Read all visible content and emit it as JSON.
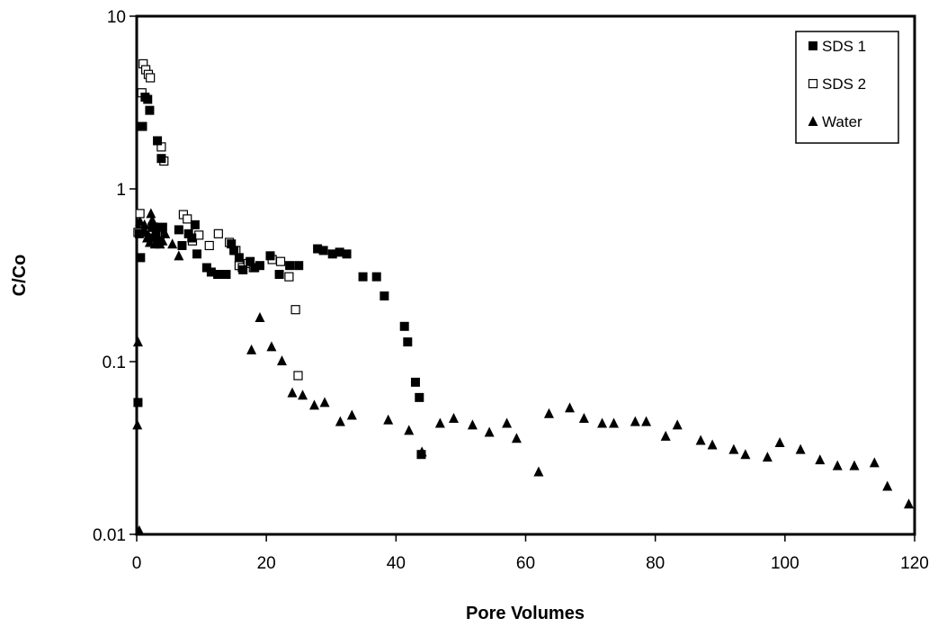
{
  "chart_data": {
    "type": "scatter",
    "xlabel": "Pore Volumes",
    "ylabel": "C/Co",
    "xlim": [
      0,
      120
    ],
    "ylim": [
      0.01,
      10
    ],
    "yscale": "log",
    "xticks": [
      "0",
      "20",
      "40",
      "60",
      "80",
      "100",
      "120"
    ],
    "yticks": [
      "0.01",
      "0.1",
      "1",
      "10"
    ],
    "grid": false,
    "legend_position": "top-right",
    "series": [
      {
        "name": "SDS 1",
        "marker": "filled-square",
        "color": "#000000",
        "points": [
          [
            0.2,
            0.058
          ],
          [
            0.4,
            0.55
          ],
          [
            0.6,
            0.4
          ],
          [
            0.9,
            2.3
          ],
          [
            1.3,
            3.4
          ],
          [
            1.7,
            3.3
          ],
          [
            2.0,
            2.85
          ],
          [
            2.4,
            0.6
          ],
          [
            2.7,
            0.52
          ],
          [
            3.0,
            0.55
          ],
          [
            3.2,
            1.9
          ],
          [
            3.6,
            0.5
          ],
          [
            3.8,
            1.5
          ],
          [
            4.0,
            0.6
          ],
          [
            6.5,
            0.58
          ],
          [
            7.0,
            0.47
          ],
          [
            8.0,
            0.55
          ],
          [
            8.5,
            0.52
          ],
          [
            9.0,
            0.62
          ],
          [
            9.3,
            0.42
          ],
          [
            10.8,
            0.35
          ],
          [
            11.5,
            0.33
          ],
          [
            12.5,
            0.32
          ],
          [
            13.8,
            0.32
          ],
          [
            14.6,
            0.48
          ],
          [
            15.0,
            0.44
          ],
          [
            15.8,
            0.4
          ],
          [
            16.4,
            0.34
          ],
          [
            17.5,
            0.38
          ],
          [
            18.2,
            0.35
          ],
          [
            19.0,
            0.36
          ],
          [
            20.6,
            0.41
          ],
          [
            22.0,
            0.32
          ],
          [
            23.6,
            0.36
          ],
          [
            25.0,
            0.36
          ],
          [
            27.9,
            0.45
          ],
          [
            28.8,
            0.44
          ],
          [
            30.2,
            0.42
          ],
          [
            31.3,
            0.43
          ],
          [
            32.4,
            0.42
          ],
          [
            34.9,
            0.31
          ],
          [
            37.0,
            0.31
          ],
          [
            38.2,
            0.24
          ],
          [
            41.3,
            0.16
          ],
          [
            41.8,
            0.13
          ],
          [
            43.0,
            0.076
          ],
          [
            43.6,
            0.062
          ],
          [
            43.9,
            0.029
          ]
        ]
      },
      {
        "name": "SDS 2",
        "marker": "open-square",
        "color": "#000000",
        "points": [
          [
            0.2,
            0.56
          ],
          [
            0.5,
            0.72
          ],
          [
            0.8,
            3.6
          ],
          [
            1.0,
            5.3
          ],
          [
            1.4,
            4.9
          ],
          [
            1.8,
            4.6
          ],
          [
            2.1,
            4.4
          ],
          [
            2.5,
            0.6
          ],
          [
            3.2,
            0.55
          ],
          [
            3.8,
            1.75
          ],
          [
            4.2,
            1.45
          ],
          [
            7.2,
            0.71
          ],
          [
            7.8,
            0.67
          ],
          [
            8.6,
            0.5
          ],
          [
            9.6,
            0.54
          ],
          [
            11.2,
            0.47
          ],
          [
            12.6,
            0.55
          ],
          [
            14.3,
            0.49
          ],
          [
            15.3,
            0.44
          ],
          [
            15.8,
            0.36
          ],
          [
            16.3,
            0.35
          ],
          [
            17.2,
            0.37
          ],
          [
            18.0,
            0.35
          ],
          [
            20.9,
            0.39
          ],
          [
            22.2,
            0.38
          ],
          [
            23.5,
            0.31
          ],
          [
            24.5,
            0.2
          ],
          [
            24.9,
            0.083
          ]
        ]
      },
      {
        "name": "Water",
        "marker": "filled-triangle",
        "color": "#000000",
        "points": [
          [
            0.1,
            0.043
          ],
          [
            0.2,
            0.13
          ],
          [
            0.3,
            0.6
          ],
          [
            0.4,
            0.0105
          ],
          [
            0.5,
            0.65
          ],
          [
            0.9,
            0.58
          ],
          [
            1.2,
            0.62
          ],
          [
            1.4,
            0.56
          ],
          [
            1.6,
            0.52
          ],
          [
            1.8,
            0.54
          ],
          [
            2.0,
            0.49
          ],
          [
            2.2,
            0.72
          ],
          [
            2.4,
            0.66
          ],
          [
            2.6,
            0.6
          ],
          [
            2.8,
            0.48
          ],
          [
            3.0,
            0.57
          ],
          [
            3.2,
            0.6
          ],
          [
            3.4,
            0.55
          ],
          [
            3.6,
            0.48
          ],
          [
            3.8,
            0.58
          ],
          [
            4.0,
            0.5
          ],
          [
            4.4,
            0.55
          ],
          [
            5.5,
            0.48
          ],
          [
            6.5,
            0.41
          ],
          [
            17.7,
            0.117
          ],
          [
            19.0,
            0.18
          ],
          [
            20.8,
            0.122
          ],
          [
            22.4,
            0.101
          ],
          [
            24.0,
            0.066
          ],
          [
            25.6,
            0.064
          ],
          [
            27.4,
            0.056
          ],
          [
            29.0,
            0.058
          ],
          [
            31.4,
            0.045
          ],
          [
            33.2,
            0.049
          ],
          [
            38.8,
            0.046
          ],
          [
            42.0,
            0.04
          ],
          [
            44.0,
            0.03
          ],
          [
            46.8,
            0.044
          ],
          [
            48.9,
            0.047
          ],
          [
            51.8,
            0.043
          ],
          [
            54.4,
            0.039
          ],
          [
            57.1,
            0.044
          ],
          [
            58.6,
            0.036
          ],
          [
            62.0,
            0.023
          ],
          [
            63.6,
            0.05
          ],
          [
            66.8,
            0.054
          ],
          [
            69.0,
            0.047
          ],
          [
            71.8,
            0.044
          ],
          [
            73.6,
            0.044
          ],
          [
            76.9,
            0.045
          ],
          [
            78.6,
            0.045
          ],
          [
            81.6,
            0.037
          ],
          [
            83.4,
            0.043
          ],
          [
            87.0,
            0.035
          ],
          [
            88.8,
            0.033
          ],
          [
            92.1,
            0.031
          ],
          [
            93.9,
            0.029
          ],
          [
            97.3,
            0.028
          ],
          [
            99.2,
            0.034
          ],
          [
            102.4,
            0.031
          ],
          [
            105.4,
            0.027
          ],
          [
            108.1,
            0.025
          ],
          [
            110.7,
            0.025
          ],
          [
            113.8,
            0.026
          ],
          [
            115.8,
            0.019
          ],
          [
            119.1,
            0.015
          ]
        ]
      }
    ]
  }
}
